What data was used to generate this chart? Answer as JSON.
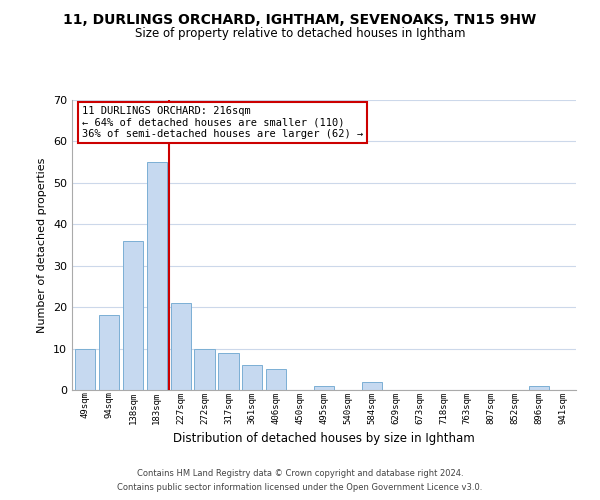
{
  "title": "11, DURLINGS ORCHARD, IGHTHAM, SEVENOAKS, TN15 9HW",
  "subtitle": "Size of property relative to detached houses in Ightham",
  "xlabel": "Distribution of detached houses by size in Ightham",
  "ylabel": "Number of detached properties",
  "bin_labels": [
    "49sqm",
    "94sqm",
    "138sqm",
    "183sqm",
    "227sqm",
    "272sqm",
    "317sqm",
    "361sqm",
    "406sqm",
    "450sqm",
    "495sqm",
    "540sqm",
    "584sqm",
    "629sqm",
    "673sqm",
    "718sqm",
    "763sqm",
    "807sqm",
    "852sqm",
    "896sqm",
    "941sqm"
  ],
  "bar_values": [
    10,
    18,
    36,
    55,
    21,
    10,
    9,
    6,
    5,
    0,
    1,
    0,
    2,
    0,
    0,
    0,
    0,
    0,
    0,
    1,
    0
  ],
  "bar_color": "#c6d9f0",
  "bar_edge_color": "#7bafd4",
  "vline_x": 3.5,
  "vline_color": "#cc0000",
  "ylim": [
    0,
    70
  ],
  "yticks": [
    0,
    10,
    20,
    30,
    40,
    50,
    60,
    70
  ],
  "annotation_title": "11 DURLINGS ORCHARD: 216sqm",
  "annotation_line1": "← 64% of detached houses are smaller (110)",
  "annotation_line2": "36% of semi-detached houses are larger (62) →",
  "annotation_box_color": "#ffffff",
  "annotation_box_edge": "#cc0000",
  "footer_line1": "Contains HM Land Registry data © Crown copyright and database right 2024.",
  "footer_line2": "Contains public sector information licensed under the Open Government Licence v3.0.",
  "bg_color": "#ffffff",
  "grid_color": "#ccd8ea"
}
